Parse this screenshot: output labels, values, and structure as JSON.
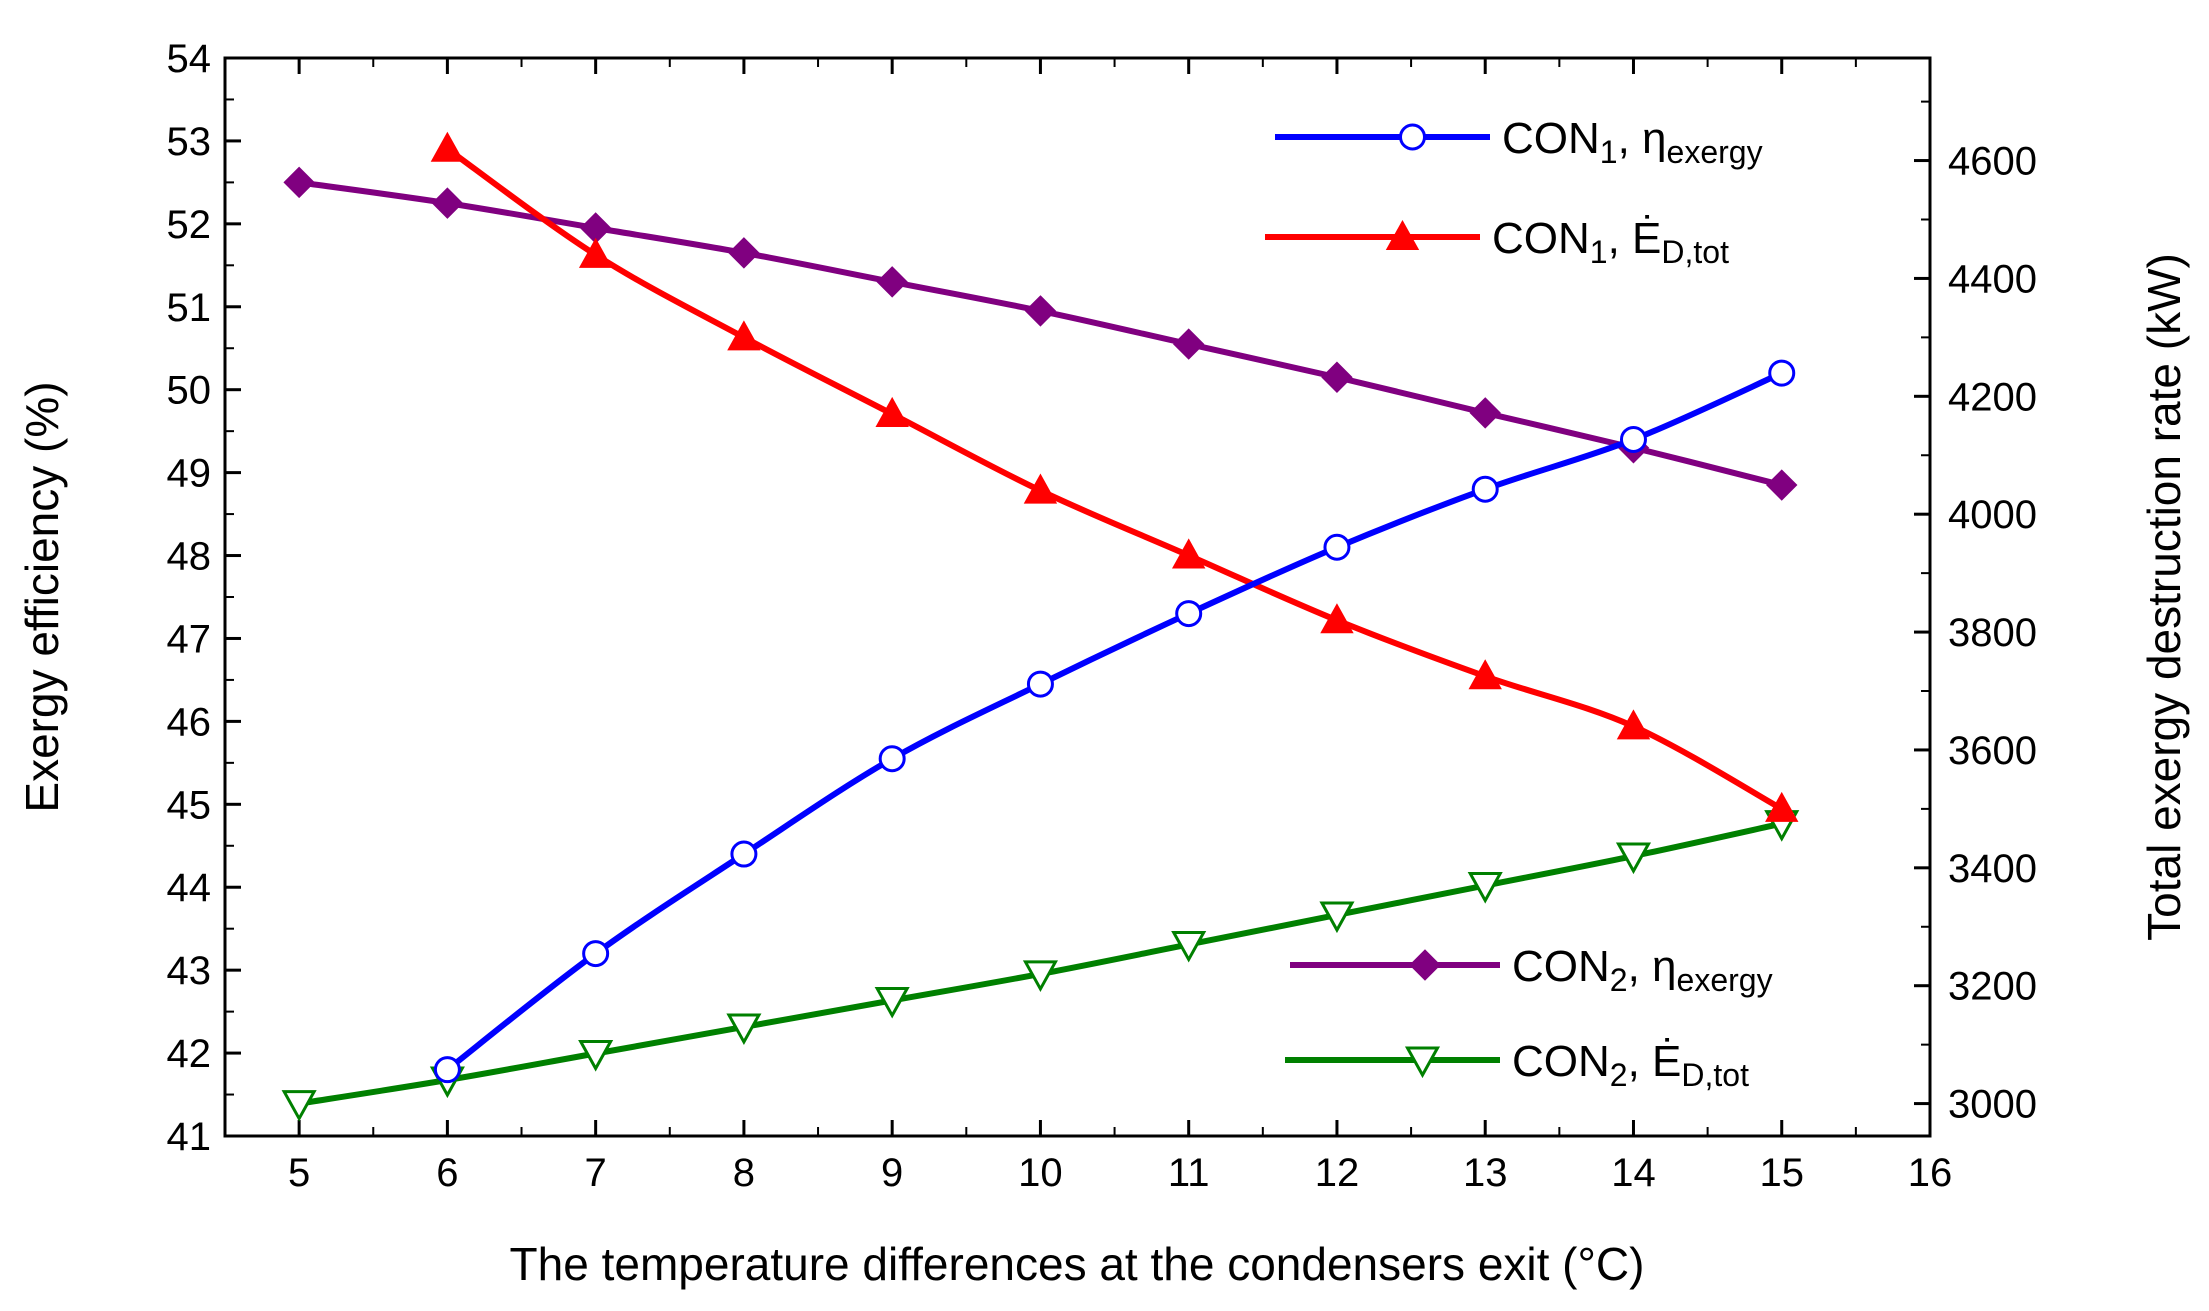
{
  "chart_data": {
    "type": "line",
    "title": "",
    "xlabel": "The temperature differences at the condensers exit (°C)",
    "ylabel_left": "Exergy efficiency (%)",
    "ylabel_right": "Total exergy destruction rate (kW)",
    "xlim": [
      4.5,
      16
    ],
    "ylim_left": [
      41,
      54
    ],
    "ylim_right": [
      2945,
      4774
    ],
    "x_ticks": [
      "5",
      "6",
      "7",
      "8",
      "9",
      "10",
      "11",
      "12",
      "13",
      "14",
      "15",
      "16"
    ],
    "y_left_ticks": [
      "41",
      "42",
      "43",
      "44",
      "45",
      "46",
      "47",
      "48",
      "49",
      "50",
      "51",
      "52",
      "53",
      "54"
    ],
    "y_right_ticks": [
      "3000",
      "3200",
      "3400",
      "3600",
      "3800",
      "4000",
      "4200",
      "4400",
      "4600"
    ],
    "grid": false,
    "series": [
      {
        "id": "con1_eta",
        "axis": "left",
        "color": "#0000ff",
        "marker": "circle-open",
        "legend": {
          "prefix": "CON",
          "sub": "1",
          "sep": ", ",
          "sym": "η",
          "symsub": "exergy"
        },
        "x": [
          6,
          7,
          8,
          9,
          10,
          11,
          12,
          13,
          14,
          15
        ],
        "y": [
          41.8,
          43.2,
          44.4,
          45.55,
          46.45,
          47.3,
          48.1,
          48.8,
          49.4,
          50.2
        ]
      },
      {
        "id": "con1_ed",
        "axis": "right",
        "color": "#ff0000",
        "marker": "triangle-up-filled",
        "legend": {
          "prefix": "CON",
          "sub": "1",
          "sep": ", ",
          "sym": "Ė",
          "symsub": "D,tot"
        },
        "x": [
          6,
          7,
          8,
          9,
          10,
          11,
          12,
          13,
          14,
          15
        ],
        "y": [
          4620,
          4440,
          4300,
          4170,
          4040,
          3930,
          3820,
          3725,
          3640,
          3500
        ]
      },
      {
        "id": "con2_eta",
        "axis": "left",
        "color": "#800080",
        "marker": "diamond-filled",
        "legend": {
          "prefix": "CON",
          "sub": "2",
          "sep": ", ",
          "sym": "η",
          "symsub": "exergy"
        },
        "x": [
          5,
          6,
          7,
          8,
          9,
          10,
          11,
          12,
          13,
          14,
          15
        ],
        "y": [
          52.5,
          52.25,
          51.95,
          51.65,
          51.3,
          50.95,
          50.55,
          50.15,
          49.72,
          49.3,
          48.85
        ]
      },
      {
        "id": "con2_ed",
        "axis": "right",
        "color": "#008000",
        "marker": "triangle-down-open",
        "legend": {
          "prefix": "CON",
          "sub": "2",
          "sep": ", ",
          "sym": "Ė",
          "symsub": "D,tot"
        },
        "x": [
          5,
          6,
          7,
          8,
          9,
          10,
          11,
          12,
          13,
          14,
          15
        ],
        "y": [
          3000,
          3040,
          3085,
          3130,
          3175,
          3220,
          3270,
          3320,
          3370,
          3420,
          3475
        ]
      }
    ]
  }
}
